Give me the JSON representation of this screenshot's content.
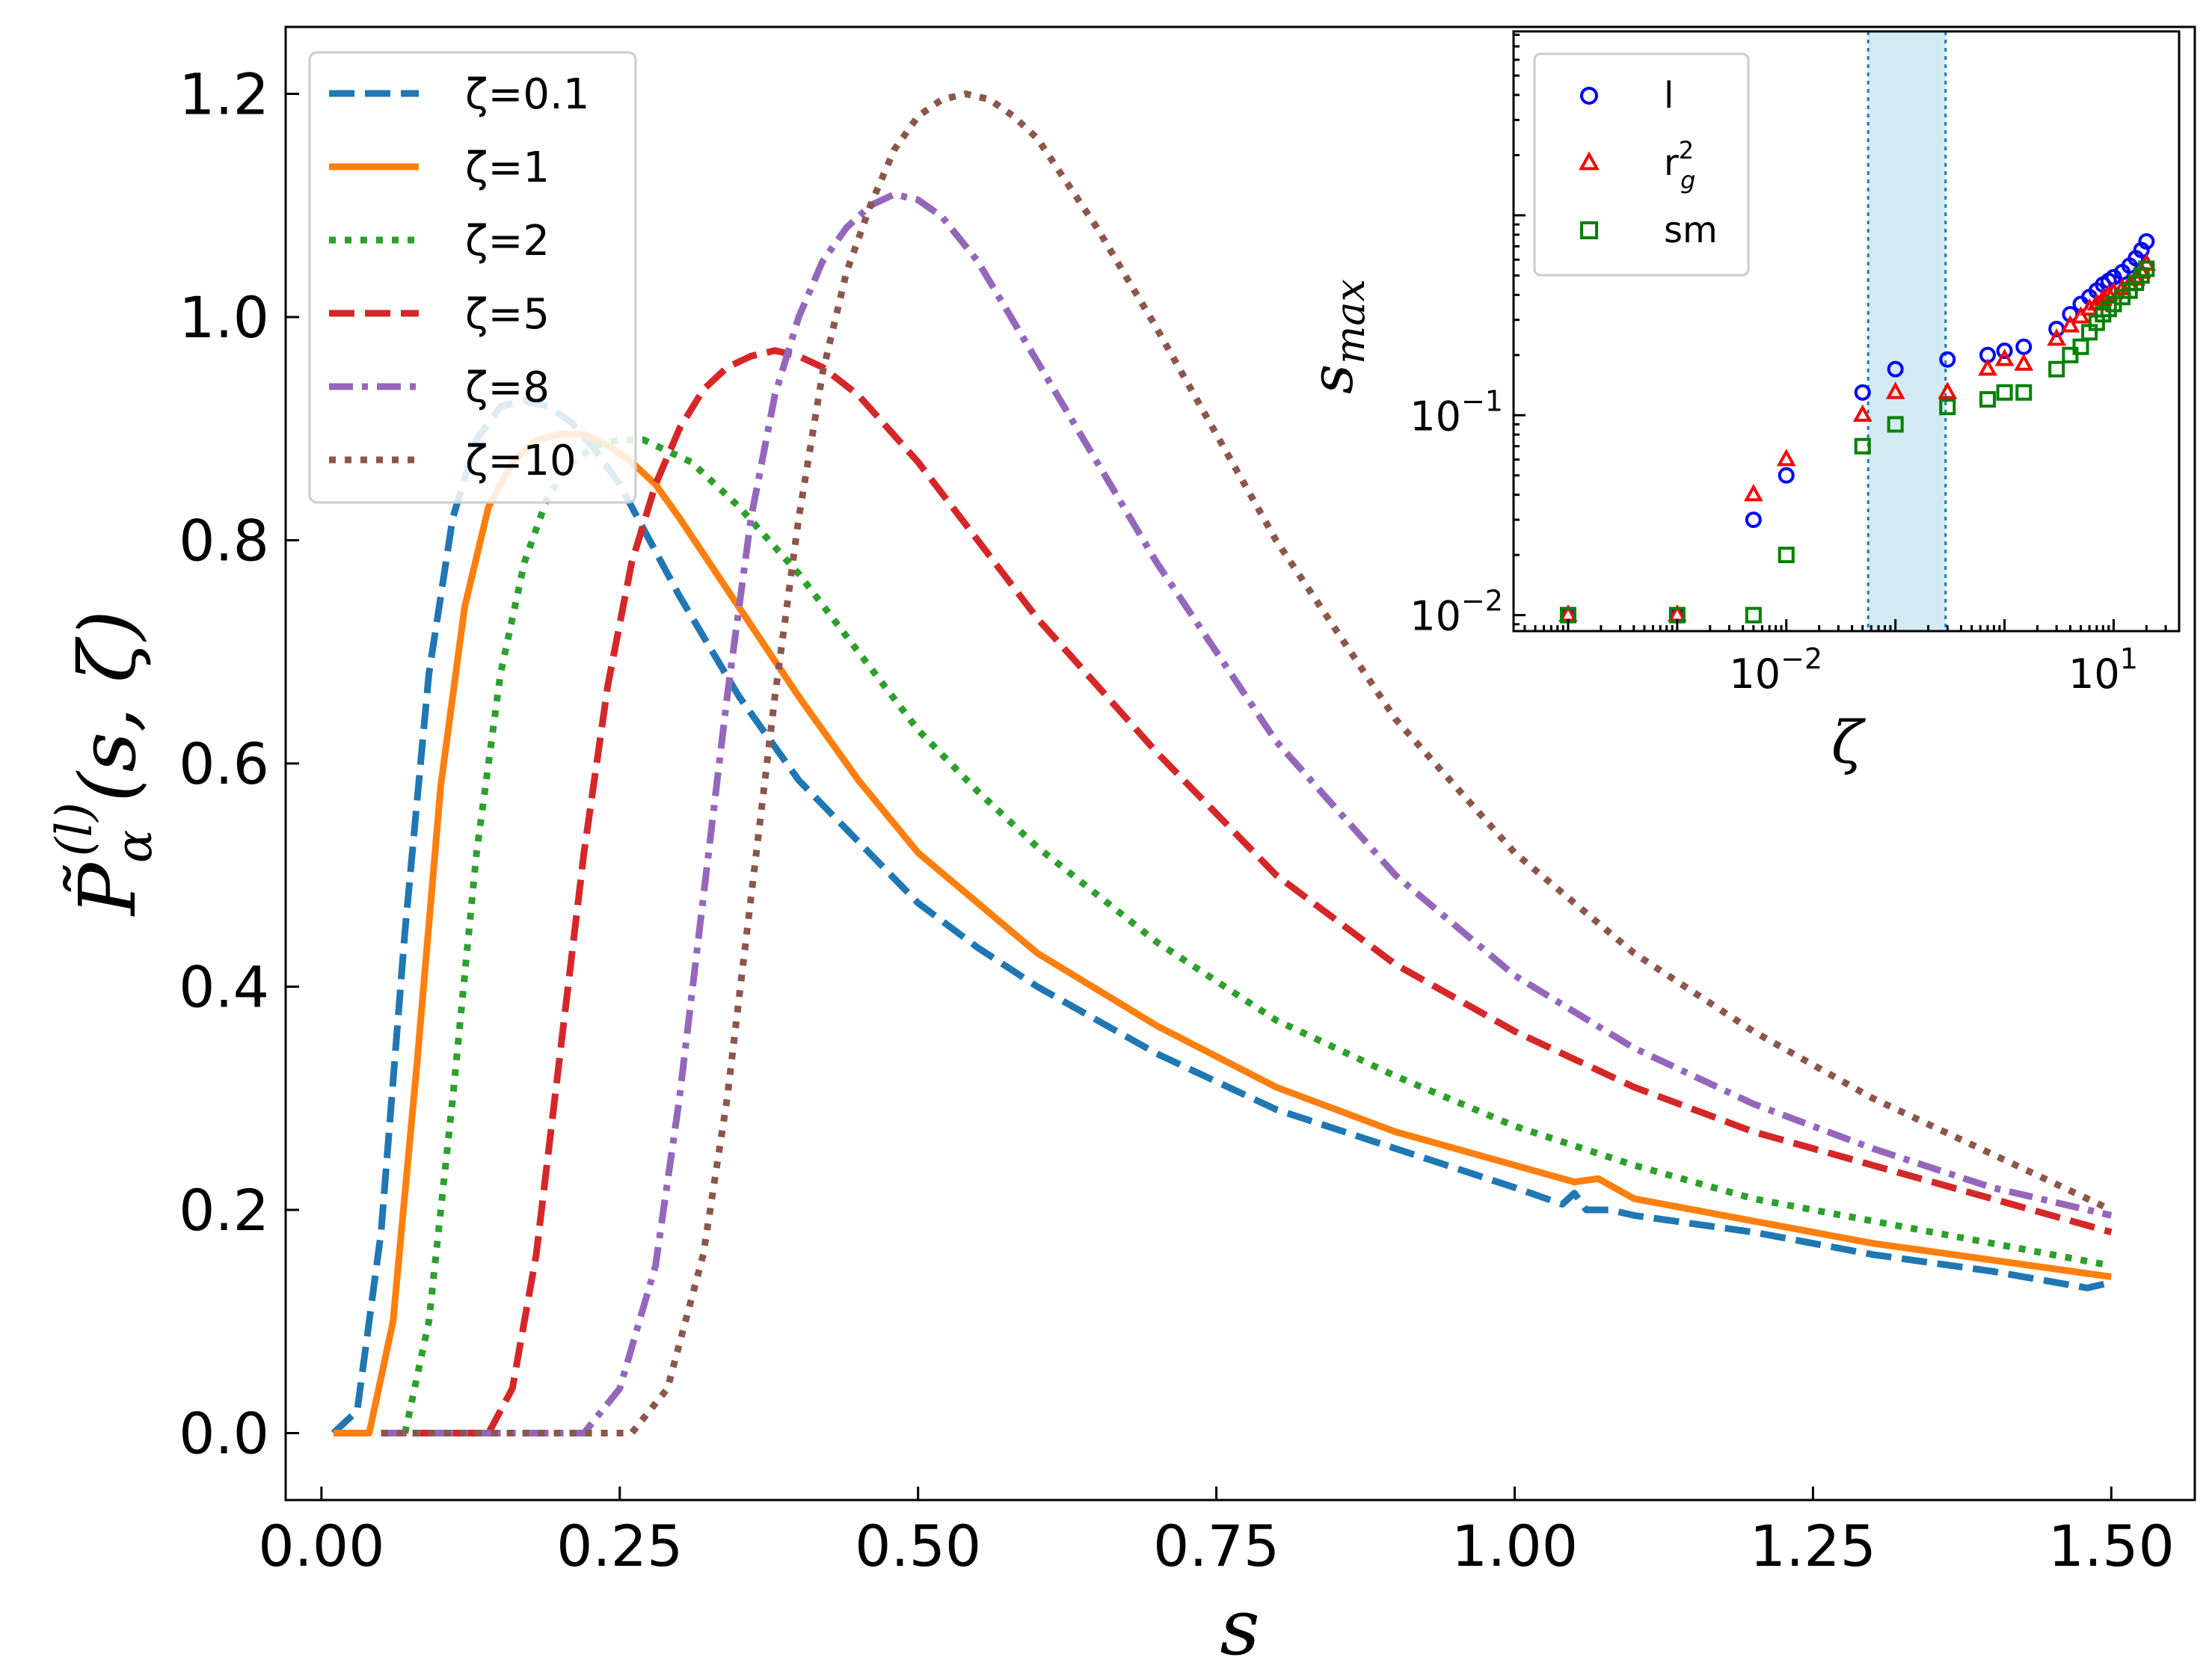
{
  "chart_data": [
    {
      "type": "line",
      "xlabel": "s",
      "ylabel_main": "P̃",
      "ylabel_sup": "(l)",
      "ylabel_sub": "α",
      "ylabel_args": "(s, ζ)",
      "xlim": [
        -0.03,
        1.57
      ],
      "ylim": [
        -0.06,
        1.26
      ],
      "xticks": [
        "0.00",
        "0.25",
        "0.50",
        "0.75",
        "1.00",
        "1.25",
        "1.50"
      ],
      "xtick_values": [
        0,
        0.25,
        0.5,
        0.75,
        1.0,
        1.25,
        1.5
      ],
      "yticks": [
        "0.0",
        "0.2",
        "0.4",
        "0.6",
        "0.8",
        "1.0",
        "1.2"
      ],
      "ytick_values": [
        0,
        0.2,
        0.4,
        0.6,
        0.8,
        1.0,
        1.2
      ],
      "legend_position": "top-left",
      "series": [
        {
          "name": "ζ=0.1",
          "color": "#1f77b4",
          "style": "dashed",
          "x": [
            0.01,
            0.03,
            0.05,
            0.07,
            0.09,
            0.11,
            0.13,
            0.15,
            0.17,
            0.19,
            0.21,
            0.23,
            0.25,
            0.27,
            0.3,
            0.35,
            0.4,
            0.45,
            0.5,
            0.55,
            0.6,
            0.7,
            0.8,
            0.9,
            1.0,
            1.04,
            1.05,
            1.06,
            1.08,
            1.1,
            1.2,
            1.3,
            1.4,
            1.48,
            1.5
          ],
          "y": [
            0.0,
            0.02,
            0.18,
            0.45,
            0.68,
            0.82,
            0.89,
            0.92,
            0.925,
            0.92,
            0.905,
            0.88,
            0.85,
            0.81,
            0.75,
            0.66,
            0.585,
            0.53,
            0.475,
            0.435,
            0.4,
            0.34,
            0.29,
            0.255,
            0.22,
            0.205,
            0.215,
            0.2,
            0.2,
            0.195,
            0.18,
            0.16,
            0.145,
            0.13,
            0.135
          ]
        },
        {
          "name": "ζ=1",
          "color": "#ff7f0e",
          "style": "solid",
          "x": [
            0.01,
            0.04,
            0.06,
            0.08,
            0.1,
            0.12,
            0.14,
            0.16,
            0.18,
            0.2,
            0.22,
            0.24,
            0.26,
            0.28,
            0.3,
            0.35,
            0.4,
            0.45,
            0.5,
            0.6,
            0.7,
            0.8,
            0.9,
            1.0,
            1.05,
            1.07,
            1.1,
            1.2,
            1.3,
            1.4,
            1.5
          ],
          "y": [
            0.0,
            0.0,
            0.1,
            0.33,
            0.58,
            0.74,
            0.83,
            0.87,
            0.89,
            0.895,
            0.895,
            0.885,
            0.87,
            0.85,
            0.82,
            0.74,
            0.66,
            0.585,
            0.52,
            0.43,
            0.365,
            0.31,
            0.27,
            0.24,
            0.225,
            0.228,
            0.21,
            0.19,
            0.17,
            0.155,
            0.14
          ]
        },
        {
          "name": "ζ=2",
          "color": "#2ca02c",
          "style": "dotted",
          "x": [
            0.07,
            0.09,
            0.11,
            0.13,
            0.15,
            0.17,
            0.19,
            0.21,
            0.23,
            0.25,
            0.27,
            0.29,
            0.31,
            0.35,
            0.4,
            0.45,
            0.5,
            0.55,
            0.6,
            0.7,
            0.8,
            0.9,
            1.0,
            1.1,
            1.2,
            1.3,
            1.4,
            1.5
          ],
          "y": [
            0.0,
            0.1,
            0.3,
            0.52,
            0.68,
            0.78,
            0.84,
            0.87,
            0.885,
            0.89,
            0.89,
            0.88,
            0.87,
            0.83,
            0.77,
            0.7,
            0.63,
            0.575,
            0.525,
            0.44,
            0.37,
            0.32,
            0.275,
            0.24,
            0.21,
            0.19,
            0.17,
            0.15
          ]
        },
        {
          "name": "ζ=5",
          "color": "#d62728",
          "style": "dashed",
          "x": [
            0.05,
            0.14,
            0.16,
            0.18,
            0.2,
            0.22,
            0.24,
            0.26,
            0.28,
            0.3,
            0.32,
            0.34,
            0.36,
            0.38,
            0.4,
            0.42,
            0.45,
            0.5,
            0.55,
            0.6,
            0.7,
            0.8,
            0.9,
            1.0,
            1.1,
            1.2,
            1.3,
            1.4,
            1.5
          ],
          "y": [
            0.0,
            0.0,
            0.04,
            0.16,
            0.34,
            0.52,
            0.67,
            0.78,
            0.85,
            0.9,
            0.935,
            0.955,
            0.965,
            0.97,
            0.965,
            0.955,
            0.93,
            0.87,
            0.8,
            0.73,
            0.61,
            0.5,
            0.42,
            0.36,
            0.31,
            0.27,
            0.24,
            0.21,
            0.18
          ]
        },
        {
          "name": "ζ=8",
          "color": "#9467bd",
          "style": "dashdot",
          "x": [
            0.05,
            0.22,
            0.25,
            0.28,
            0.3,
            0.32,
            0.34,
            0.36,
            0.38,
            0.4,
            0.42,
            0.44,
            0.46,
            0.48,
            0.5,
            0.52,
            0.55,
            0.6,
            0.65,
            0.7,
            0.8,
            0.9,
            1.0,
            1.1,
            1.2,
            1.3,
            1.4,
            1.5
          ],
          "y": [
            0.0,
            0.0,
            0.04,
            0.15,
            0.3,
            0.48,
            0.66,
            0.82,
            0.93,
            1.0,
            1.05,
            1.08,
            1.1,
            1.11,
            1.105,
            1.09,
            1.05,
            0.96,
            0.87,
            0.78,
            0.62,
            0.5,
            0.41,
            0.345,
            0.295,
            0.255,
            0.22,
            0.195
          ]
        },
        {
          "name": "ζ=10",
          "color": "#8c564b",
          "style": "dotted",
          "x": [
            0.05,
            0.26,
            0.29,
            0.32,
            0.34,
            0.36,
            0.38,
            0.4,
            0.42,
            0.44,
            0.46,
            0.48,
            0.5,
            0.52,
            0.54,
            0.56,
            0.58,
            0.6,
            0.65,
            0.7,
            0.8,
            0.9,
            1.0,
            1.1,
            1.2,
            1.3,
            1.4,
            1.5
          ],
          "y": [
            0.0,
            0.0,
            0.04,
            0.16,
            0.3,
            0.48,
            0.66,
            0.82,
            0.95,
            1.04,
            1.1,
            1.15,
            1.18,
            1.195,
            1.2,
            1.195,
            1.18,
            1.16,
            1.08,
            0.99,
            0.8,
            0.64,
            0.52,
            0.43,
            0.36,
            0.3,
            0.25,
            0.2
          ]
        }
      ]
    },
    {
      "type": "scatter",
      "xscale": "log",
      "yscale": "log",
      "xlabel": "ζ",
      "ylabel_main": "s",
      "ylabel_sub": "max",
      "xlim_log10": [
        -4.5,
        1.6
      ],
      "ylim_log10": [
        -2.08,
        0.92
      ],
      "xtick_labels": [
        {
          "base": "10",
          "exp": "−2",
          "log10": -2
        },
        {
          "base": "10",
          "exp": "1",
          "log10": 1
        }
      ],
      "ytick_labels": [
        {
          "base": "10",
          "exp": "−2",
          "log10": -2
        },
        {
          "base": "10",
          "exp": "−1",
          "log10": -1
        }
      ],
      "shaded_band_log10": [
        -1.25,
        -0.54
      ],
      "band_color": "#add8e6",
      "band_edge_color": "#1f77b4",
      "legend_position": "top-left",
      "series": [
        {
          "name": "l",
          "marker": "circle",
          "color": "#0000ff",
          "zeta": [
            0.0001,
            0.001,
            0.005,
            0.01,
            0.05,
            0.1,
            0.3,
            0.7,
            1.0,
            1.5,
            3.0,
            4.0,
            5.0,
            6.0,
            7.0,
            8.0,
            9.0,
            10.0,
            12.0,
            14.0,
            16.0,
            18.0,
            20.0
          ],
          "smax": [
            0.01,
            0.01,
            0.03,
            0.05,
            0.13,
            0.17,
            0.19,
            0.2,
            0.21,
            0.22,
            0.27,
            0.32,
            0.36,
            0.39,
            0.42,
            0.45,
            0.47,
            0.49,
            0.52,
            0.56,
            0.61,
            0.67,
            0.74
          ]
        },
        {
          "name": "r_g^2",
          "label_main": "r",
          "label_sup": "2",
          "label_sub": "g",
          "marker": "triangle",
          "color": "#ff0000",
          "zeta": [
            0.0001,
            0.001,
            0.005,
            0.01,
            0.05,
            0.1,
            0.3,
            0.7,
            1.0,
            1.5,
            3.0,
            4.0,
            5.0,
            6.0,
            7.0,
            8.0,
            9.0,
            10.0,
            12.0,
            14.0,
            16.0,
            18.0,
            20.0
          ],
          "smax": [
            0.01,
            0.01,
            0.04,
            0.06,
            0.1,
            0.13,
            0.13,
            0.17,
            0.19,
            0.18,
            0.24,
            0.28,
            0.31,
            0.34,
            0.36,
            0.38,
            0.4,
            0.41,
            0.43,
            0.45,
            0.48,
            0.52,
            0.57
          ]
        },
        {
          "name": "sm",
          "marker": "square",
          "color": "#008000",
          "zeta": [
            0.0001,
            0.001,
            0.005,
            0.01,
            0.05,
            0.1,
            0.3,
            0.7,
            1.0,
            1.5,
            3.0,
            4.0,
            5.0,
            6.0,
            7.0,
            8.0,
            9.0,
            10.0,
            12.0,
            14.0,
            16.0,
            18.0,
            20.0
          ],
          "smax": [
            0.01,
            0.01,
            0.01,
            0.02,
            0.07,
            0.09,
            0.11,
            0.12,
            0.13,
            0.13,
            0.17,
            0.2,
            0.22,
            0.26,
            0.29,
            0.32,
            0.34,
            0.36,
            0.39,
            0.42,
            0.46,
            0.5,
            0.54
          ]
        }
      ]
    }
  ]
}
